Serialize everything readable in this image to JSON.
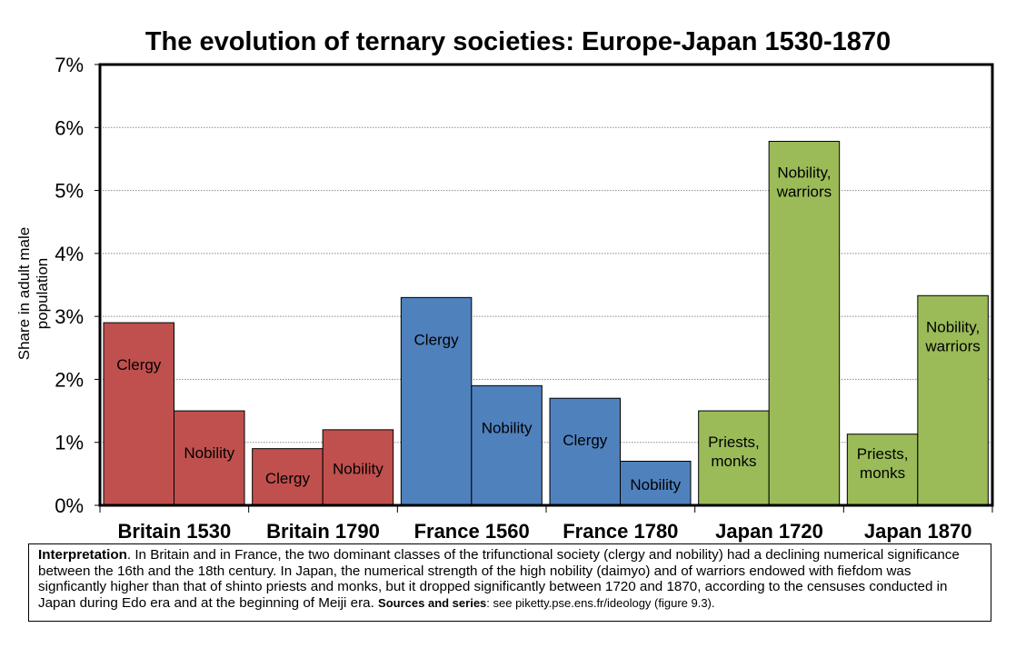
{
  "chart_data": {
    "type": "bar",
    "title": "The evolution of ternary societies: Europe-Japan 1530-1870",
    "ylabel": "Share in adult male population",
    "ylim": [
      0,
      7
    ],
    "yticks": [
      "0%",
      "1%",
      "2%",
      "3%",
      "4%",
      "5%",
      "6%",
      "7%"
    ],
    "grid": true,
    "legend": "none",
    "groups": [
      {
        "label": "Britain 1530",
        "color": "#c0504d",
        "bars": [
          {
            "label": "Clergy",
            "value": 2.9
          },
          {
            "label": "Nobility",
            "value": 1.5
          }
        ]
      },
      {
        "label": "Britain 1790",
        "color": "#c0504d",
        "bars": [
          {
            "label": "Clergy",
            "value": 0.9
          },
          {
            "label": "Nobility",
            "value": 1.2
          }
        ]
      },
      {
        "label": "France 1560",
        "color": "#4f81bd",
        "bars": [
          {
            "label": "Clergy",
            "value": 3.3
          },
          {
            "label": "Nobility",
            "value": 1.9
          }
        ]
      },
      {
        "label": "France 1780",
        "color": "#4f81bd",
        "bars": [
          {
            "label": "Clergy",
            "value": 1.7
          },
          {
            "label": "Nobility",
            "value": 0.7
          }
        ]
      },
      {
        "label": "Japan 1720",
        "color": "#9bbb59",
        "bars": [
          {
            "label": "Priests, monks",
            "value": 1.5
          },
          {
            "label": "Nobility, warriors",
            "value": 5.78
          }
        ]
      },
      {
        "label": "Japan 1870",
        "color": "#9bbb59",
        "bars": [
          {
            "label": "Priests, monks",
            "value": 1.13
          },
          {
            "label": "Nobility, warriors",
            "value": 3.33
          }
        ]
      }
    ]
  },
  "note": {
    "interpretation_label": "Interpretation",
    "interpretation_text": ". In Britain and in France, the two dominant classes of the trifunctional society (clergy and nobility) had a declining numerical significance between the 16th and the 18th century. In Japan, the numerical strength of the high nobility (daimyo) and of warriors endowed with fiefdom was signficantly higher than that of shinto priests and monks, but it dropped significantly between 1720 and 1870, according to the censuses conducted in Japan during Edo era and at the beginning of Meiji era. ",
    "sources_label": "Sources and series",
    "sources_text": ": see piketty.pse.ens.fr/ideology (figure 9.3)."
  }
}
